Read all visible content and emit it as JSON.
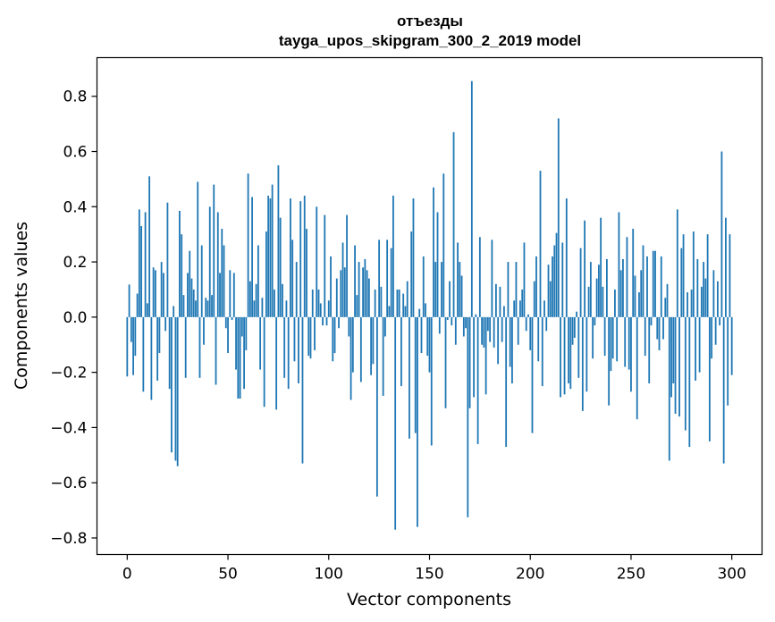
{
  "chart_data": {
    "type": "bar",
    "title": "отъезды",
    "subtitle": "tayga_upos_skipgram_300_2_2019 model",
    "xlabel": "Vector components",
    "ylabel": "Components values",
    "xlim": [
      -15,
      315
    ],
    "ylim": [
      -0.86,
      0.94
    ],
    "xticks": [
      0,
      50,
      100,
      150,
      200,
      250,
      300
    ],
    "xtick_labels": [
      "0",
      "50",
      "100",
      "150",
      "200",
      "250",
      "300"
    ],
    "yticks": [
      -0.8,
      -0.6,
      -0.4,
      -0.2,
      0.0,
      0.2,
      0.4,
      0.6,
      0.8
    ],
    "ytick_labels": [
      "−0.8",
      "−0.6",
      "−0.4",
      "−0.2",
      "0.0",
      "0.2",
      "0.4",
      "0.6",
      "0.8"
    ],
    "bar_color": "#1f77b4",
    "grid": false,
    "series": [
      {
        "values": [
          -0.215,
          0.118,
          -0.09,
          -0.21,
          -0.14,
          0.085,
          0.39,
          0.33,
          -0.27,
          0.38,
          0.05,
          0.51,
          -0.3,
          0.18,
          0.17,
          -0.23,
          -0.13,
          0.2,
          0.16,
          -0.05,
          0.415,
          -0.26,
          -0.49,
          0.04,
          -0.52,
          -0.54,
          0.385,
          0.3,
          0.08,
          -0.22,
          0.16,
          0.24,
          0.14,
          0.1,
          0.06,
          0.49,
          -0.22,
          0.26,
          -0.1,
          0.07,
          0.06,
          0.4,
          0.08,
          0.48,
          -0.245,
          0.38,
          0.16,
          0.32,
          0.26,
          -0.04,
          -0.13,
          0.17,
          -0.01,
          0.16,
          -0.19,
          -0.295,
          -0.295,
          -0.07,
          -0.26,
          -0.12,
          0.52,
          0.13,
          0.435,
          0.06,
          0.12,
          0.26,
          -0.19,
          0.07,
          -0.325,
          0.31,
          0.44,
          0.43,
          0.48,
          0.1,
          -0.335,
          0.55,
          0.36,
          0.12,
          -0.22,
          0.06,
          -0.26,
          0.43,
          0.28,
          -0.16,
          0.2,
          -0.24,
          0.42,
          -0.53,
          0.44,
          0.32,
          -0.14,
          -0.15,
          0.1,
          -0.12,
          0.4,
          0.1,
          0.05,
          -0.03,
          0.37,
          -0.03,
          0.06,
          0.22,
          -0.16,
          -0.13,
          0.14,
          -0.04,
          0.17,
          0.27,
          0.18,
          0.37,
          -0.07,
          -0.3,
          -0.2,
          0.26,
          0.08,
          0.2,
          -0.235,
          0.18,
          0.21,
          0.17,
          0.14,
          -0.21,
          -0.17,
          0.1,
          -0.65,
          0.28,
          0.11,
          -0.285,
          -0.07,
          0.28,
          0.04,
          0.25,
          0.44,
          -0.77,
          0.1,
          0.1,
          -0.25,
          0.085,
          0.04,
          0.13,
          -0.44,
          0.31,
          0.43,
          -0.42,
          -0.76,
          0.03,
          -0.13,
          0.22,
          0.05,
          -0.14,
          -0.2,
          -0.465,
          0.47,
          0.2,
          0.38,
          -0.06,
          0.2,
          0.52,
          -0.33,
          -0.01,
          0.13,
          -0.03,
          0.67,
          -0.1,
          0.27,
          0.2,
          0.15,
          -0.07,
          -0.04,
          -0.725,
          -0.33,
          0.855,
          -0.29,
          0.01,
          -0.46,
          0.29,
          -0.1,
          -0.11,
          -0.28,
          -0.05,
          -0.09,
          0.28,
          -0.11,
          0.12,
          -0.17,
          0.11,
          -0.09,
          0.04,
          -0.47,
          0.2,
          -0.18,
          -0.24,
          0.06,
          0.2,
          -0.1,
          0.06,
          0.1,
          0.27,
          -0.05,
          0.01,
          -0.12,
          -0.42,
          0.13,
          0.22,
          -0.16,
          0.53,
          -0.25,
          0.06,
          -0.05,
          0.19,
          0.13,
          0.22,
          0.26,
          0.305,
          0.72,
          -0.29,
          0.27,
          -0.28,
          0.43,
          -0.24,
          -0.26,
          -0.1,
          -0.075,
          0.02,
          -0.22,
          0.25,
          -0.34,
          0.35,
          -0.27,
          0.11,
          0.2,
          -0.15,
          -0.03,
          0.14,
          0.19,
          0.36,
          0.11,
          -0.14,
          0.21,
          -0.32,
          -0.195,
          -0.15,
          0.1,
          -0.16,
          0.38,
          0.17,
          0.21,
          -0.18,
          0.29,
          -0.19,
          -0.27,
          0.32,
          0.15,
          -0.37,
          0.09,
          0.17,
          0.26,
          -0.14,
          0.22,
          -0.24,
          -0.03,
          0.24,
          0.24,
          -0.08,
          -0.12,
          0.22,
          -0.08,
          0.07,
          0.12,
          -0.52,
          -0.29,
          -0.24,
          -0.35,
          0.39,
          -0.36,
          0.25,
          0.3,
          -0.41,
          0.09,
          -0.47,
          0.1,
          0.31,
          -0.23,
          0.21,
          -0.2,
          0.11,
          0.2,
          0.14,
          0.3,
          -0.45,
          -0.15,
          0.17,
          -0.1,
          0.13,
          -0.03,
          0.6,
          -0.53,
          0.36,
          -0.32,
          0.3,
          -0.21
        ]
      }
    ]
  }
}
